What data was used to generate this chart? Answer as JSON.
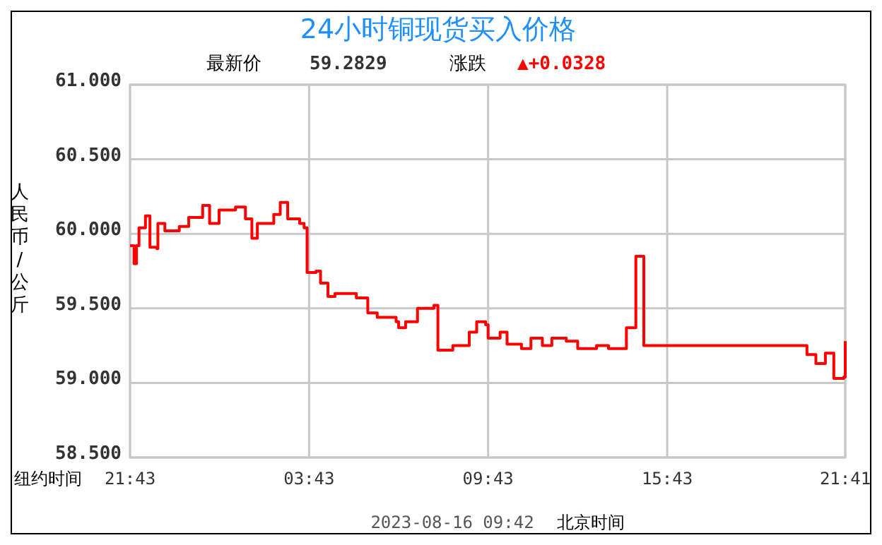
{
  "chart_data": {
    "type": "step",
    "title": "24小时铜现货买入价格",
    "ylabel": "人民币/公斤",
    "annotations": [
      "最新价",
      "59.2829",
      "涨跌",
      "▲+0.0328",
      "纽约时间",
      "2023-08-16 09:42",
      "北京时间"
    ],
    "xlim": [
      "2023-08-14T21:43",
      "2023-08-15T21:41"
    ],
    "ylim": [
      58.5,
      61
    ],
    "xticks": [
      {
        "value": "2023-08-14T21:43",
        "label": "21:43"
      },
      {
        "value": "2023-08-15T03:43",
        "label": "03:43"
      },
      {
        "value": "2023-08-15T09:43",
        "label": "09:43"
      },
      {
        "value": "2023-08-15T15:43",
        "label": "15:43"
      },
      {
        "value": "2023-08-15T21:41",
        "label": "21:41"
      }
    ],
    "yticks": [
      {
        "value": 58.5,
        "label": "58.500"
      },
      {
        "value": 59,
        "label": "59.000"
      },
      {
        "value": 59.5,
        "label": "59.500"
      },
      {
        "value": 60,
        "label": "60.000"
      },
      {
        "value": 60.5,
        "label": "60.500"
      },
      {
        "value": 61,
        "label": "61.000"
      }
    ],
    "grid": true,
    "x": [
      "2023-08-14T21:43",
      "2023-08-14T21:51",
      "2023-08-14T21:56",
      "2023-08-14T22:01",
      "2023-08-14T22:14",
      "2023-08-14T22:23",
      "2023-08-14T22:37",
      "2023-08-14T22:39",
      "2023-08-14T22:53",
      "2023-08-14T23:22",
      "2023-08-14T23:41",
      "2023-08-15T00:09",
      "2023-08-15T00:23",
      "2023-08-15T00:42",
      "2023-08-15T01:15",
      "2023-08-15T01:35",
      "2023-08-15T01:48",
      "2023-08-15T01:59",
      "2023-08-15T02:32",
      "2023-08-15T02:45",
      "2023-08-15T03:00",
      "2023-08-15T03:24",
      "2023-08-15T03:33",
      "2023-08-15T03:39",
      "2023-08-15T03:57",
      "2023-08-15T04:06",
      "2023-08-15T04:21",
      "2023-08-15T04:35",
      "2023-08-15T05:18",
      "2023-08-15T05:41",
      "2023-08-15T06:00",
      "2023-08-15T06:38",
      "2023-08-15T06:43",
      "2023-08-15T06:57",
      "2023-08-15T07:21",
      "2023-08-15T07:54",
      "2023-08-15T08:02",
      "2023-08-15T08:32",
      "2023-08-15T09:05",
      "2023-08-15T09:20",
      "2023-08-15T09:38",
      "2023-08-15T09:43",
      "2023-08-15T10:07",
      "2023-08-15T10:21",
      "2023-08-15T10:50",
      "2023-08-15T11:09",
      "2023-08-15T11:32",
      "2023-08-15T11:51",
      "2023-08-15T12:20",
      "2023-08-15T12:43",
      "2023-08-15T13:21",
      "2023-08-15T13:45",
      "2023-08-15T14:21",
      "2023-08-15T14:40",
      "2023-08-15T14:56",
      "2023-08-15T20:19",
      "2023-08-15T20:24",
      "2023-08-15T20:42",
      "2023-08-15T21:01",
      "2023-08-15T21:18",
      "2023-08-15T21:38",
      "2023-08-15T21:41"
    ],
    "series": [
      {
        "color": "#ff0000",
        "values": [
          59.92,
          59.8,
          59.92,
          60.04,
          60.12,
          59.91,
          59.9,
          60.07,
          60.02,
          60.05,
          60.11,
          60.19,
          60.07,
          60.16,
          60.18,
          60.1,
          59.97,
          60.07,
          60.13,
          60.21,
          60.1,
          60.07,
          60.04,
          59.74,
          59.75,
          59.67,
          59.58,
          59.6,
          59.57,
          59.47,
          59.44,
          59.41,
          59.37,
          59.41,
          59.5,
          59.52,
          59.22,
          59.25,
          59.34,
          59.41,
          59.39,
          59.3,
          59.34,
          59.26,
          59.23,
          59.3,
          59.25,
          59.3,
          59.28,
          59.23,
          59.25,
          59.23,
          59.37,
          59.85,
          59.25,
          59.25,
          59.19,
          59.13,
          59.2,
          59.03,
          59.04,
          59.28
        ]
      }
    ]
  }
}
